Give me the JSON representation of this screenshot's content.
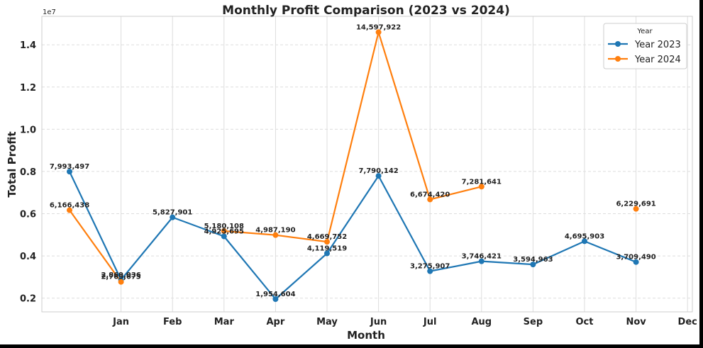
{
  "chart_data": {
    "type": "line",
    "title": "Monthly Profit Comparison (2023 vs 2024)",
    "xlabel": "Month",
    "ylabel": "Total Profit",
    "y_scale_label": "1e7",
    "x_tick_labels": [
      "Jan",
      "Feb",
      "Mar",
      "Apr",
      "May",
      "Jun",
      "Jul",
      "Aug",
      "Sep",
      "Oct",
      "Nov",
      "Dec"
    ],
    "y_tick_labels": [
      "0.2",
      "0.4",
      "0.6",
      "0.8",
      "1.0",
      "1.2",
      "1.4"
    ],
    "y_ticks": [
      2000000,
      4000000,
      6000000,
      8000000,
      10000000,
      12000000,
      14000000
    ],
    "ylim": [
      1350000,
      15350000
    ],
    "grid": true,
    "legend": {
      "title": "Year",
      "placement": "top-right"
    },
    "series": [
      {
        "name": "Year 2023",
        "color": "#1f77b4",
        "points": [
          {
            "x": 0,
            "y": 7993497,
            "label": "7,993,497"
          },
          {
            "x": 1,
            "y": 2869036,
            "label": "2,869,036"
          },
          {
            "x": 2,
            "y": 5827901,
            "label": "5,827,901"
          },
          {
            "x": 3,
            "y": 4925695,
            "label": "4,925,695"
          },
          {
            "x": 4,
            "y": 1954604,
            "label": "1,954,604"
          },
          {
            "x": 5,
            "y": 4119519,
            "label": "4,119,519"
          },
          {
            "x": 6,
            "y": 7790142,
            "label": "7,790,142"
          },
          {
            "x": 7,
            "y": 3275907,
            "label": "3,275,907"
          },
          {
            "x": 8,
            "y": 3746421,
            "label": "3,746,421"
          },
          {
            "x": 9,
            "y": 3594963,
            "label": "3,594,963"
          },
          {
            "x": 10,
            "y": 4695903,
            "label": "4,695,903"
          },
          {
            "x": 11,
            "y": 3709490,
            "label": "3,709,490"
          }
        ]
      },
      {
        "name": "Year 2024",
        "color": "#ff7f0e",
        "points": [
          {
            "x": 0,
            "y": 6166438,
            "label": "6,166,438"
          },
          {
            "x": 1,
            "y": 2769675,
            "label": "2,769,675"
          },
          {
            "x": 3,
            "y": 5180108,
            "label": "5,180,108"
          },
          {
            "x": 4,
            "y": 4987190,
            "label": "4,987,190"
          },
          {
            "x": 5,
            "y": 4669752,
            "label": "4,669,752"
          },
          {
            "x": 6,
            "y": 14597922,
            "label": "14,597,922"
          },
          {
            "x": 7,
            "y": 6674420,
            "label": "6,674,420"
          },
          {
            "x": 8,
            "y": 7281641,
            "label": "7,281,641"
          },
          {
            "x": 11,
            "y": 6229691,
            "label": "6,229,691"
          }
        ]
      }
    ]
  }
}
